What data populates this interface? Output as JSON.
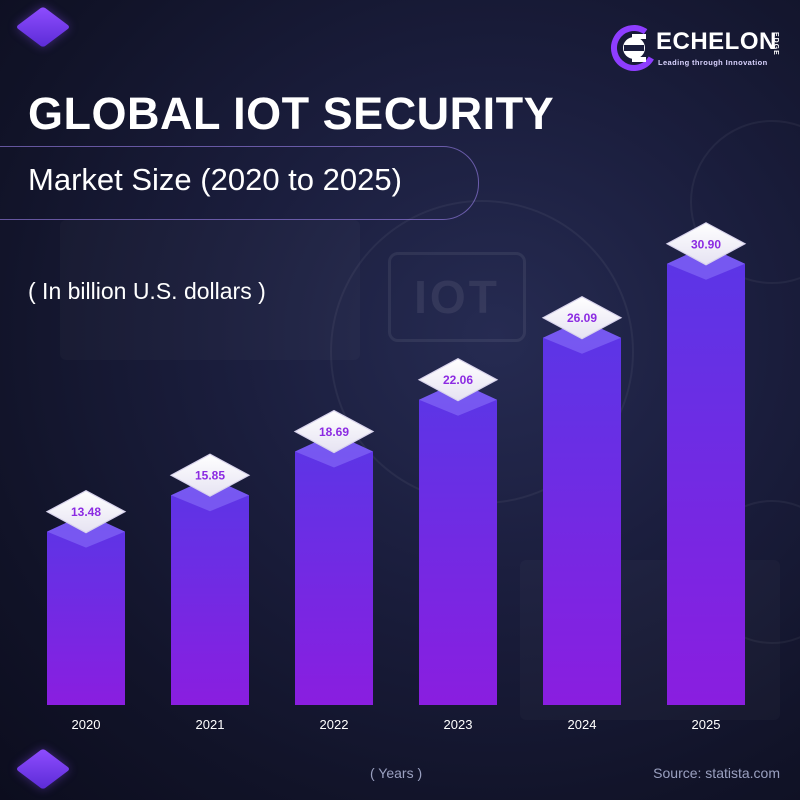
{
  "header": {
    "title": "GLOBAL IOT SECURITY",
    "subtitle": "Market Size (2020 to 2025)",
    "unit_note": "( In billion U.S. dollars )"
  },
  "logo": {
    "name": "ECHELON",
    "suffix": "EDGE",
    "tagline": "Leading through Innovation"
  },
  "footer": {
    "xlabel": "( Years )",
    "source": "Source: statista.com"
  },
  "colors": {
    "bar_top": "#5a36e6",
    "bar_bottom": "#8a1ee0",
    "value_text": "#8c2be2",
    "background": "#15172f"
  },
  "chart_data": {
    "type": "bar",
    "title": "GLOBAL IOT SECURITY",
    "subtitle": "Market Size (2020 to 2025)",
    "ylabel": "( In billion U.S. dollars )",
    "xlabel": "( Years )",
    "categories": [
      "2020",
      "2021",
      "2022",
      "2023",
      "2024",
      "2025"
    ],
    "values": [
      13.48,
      15.85,
      18.69,
      22.06,
      26.09,
      30.9
    ],
    "value_labels": [
      "13.48",
      "15.85",
      "18.69",
      "22.06",
      "26.09",
      "30.90"
    ],
    "ylim": [
      0,
      31
    ],
    "grid": false,
    "legend": "none"
  }
}
